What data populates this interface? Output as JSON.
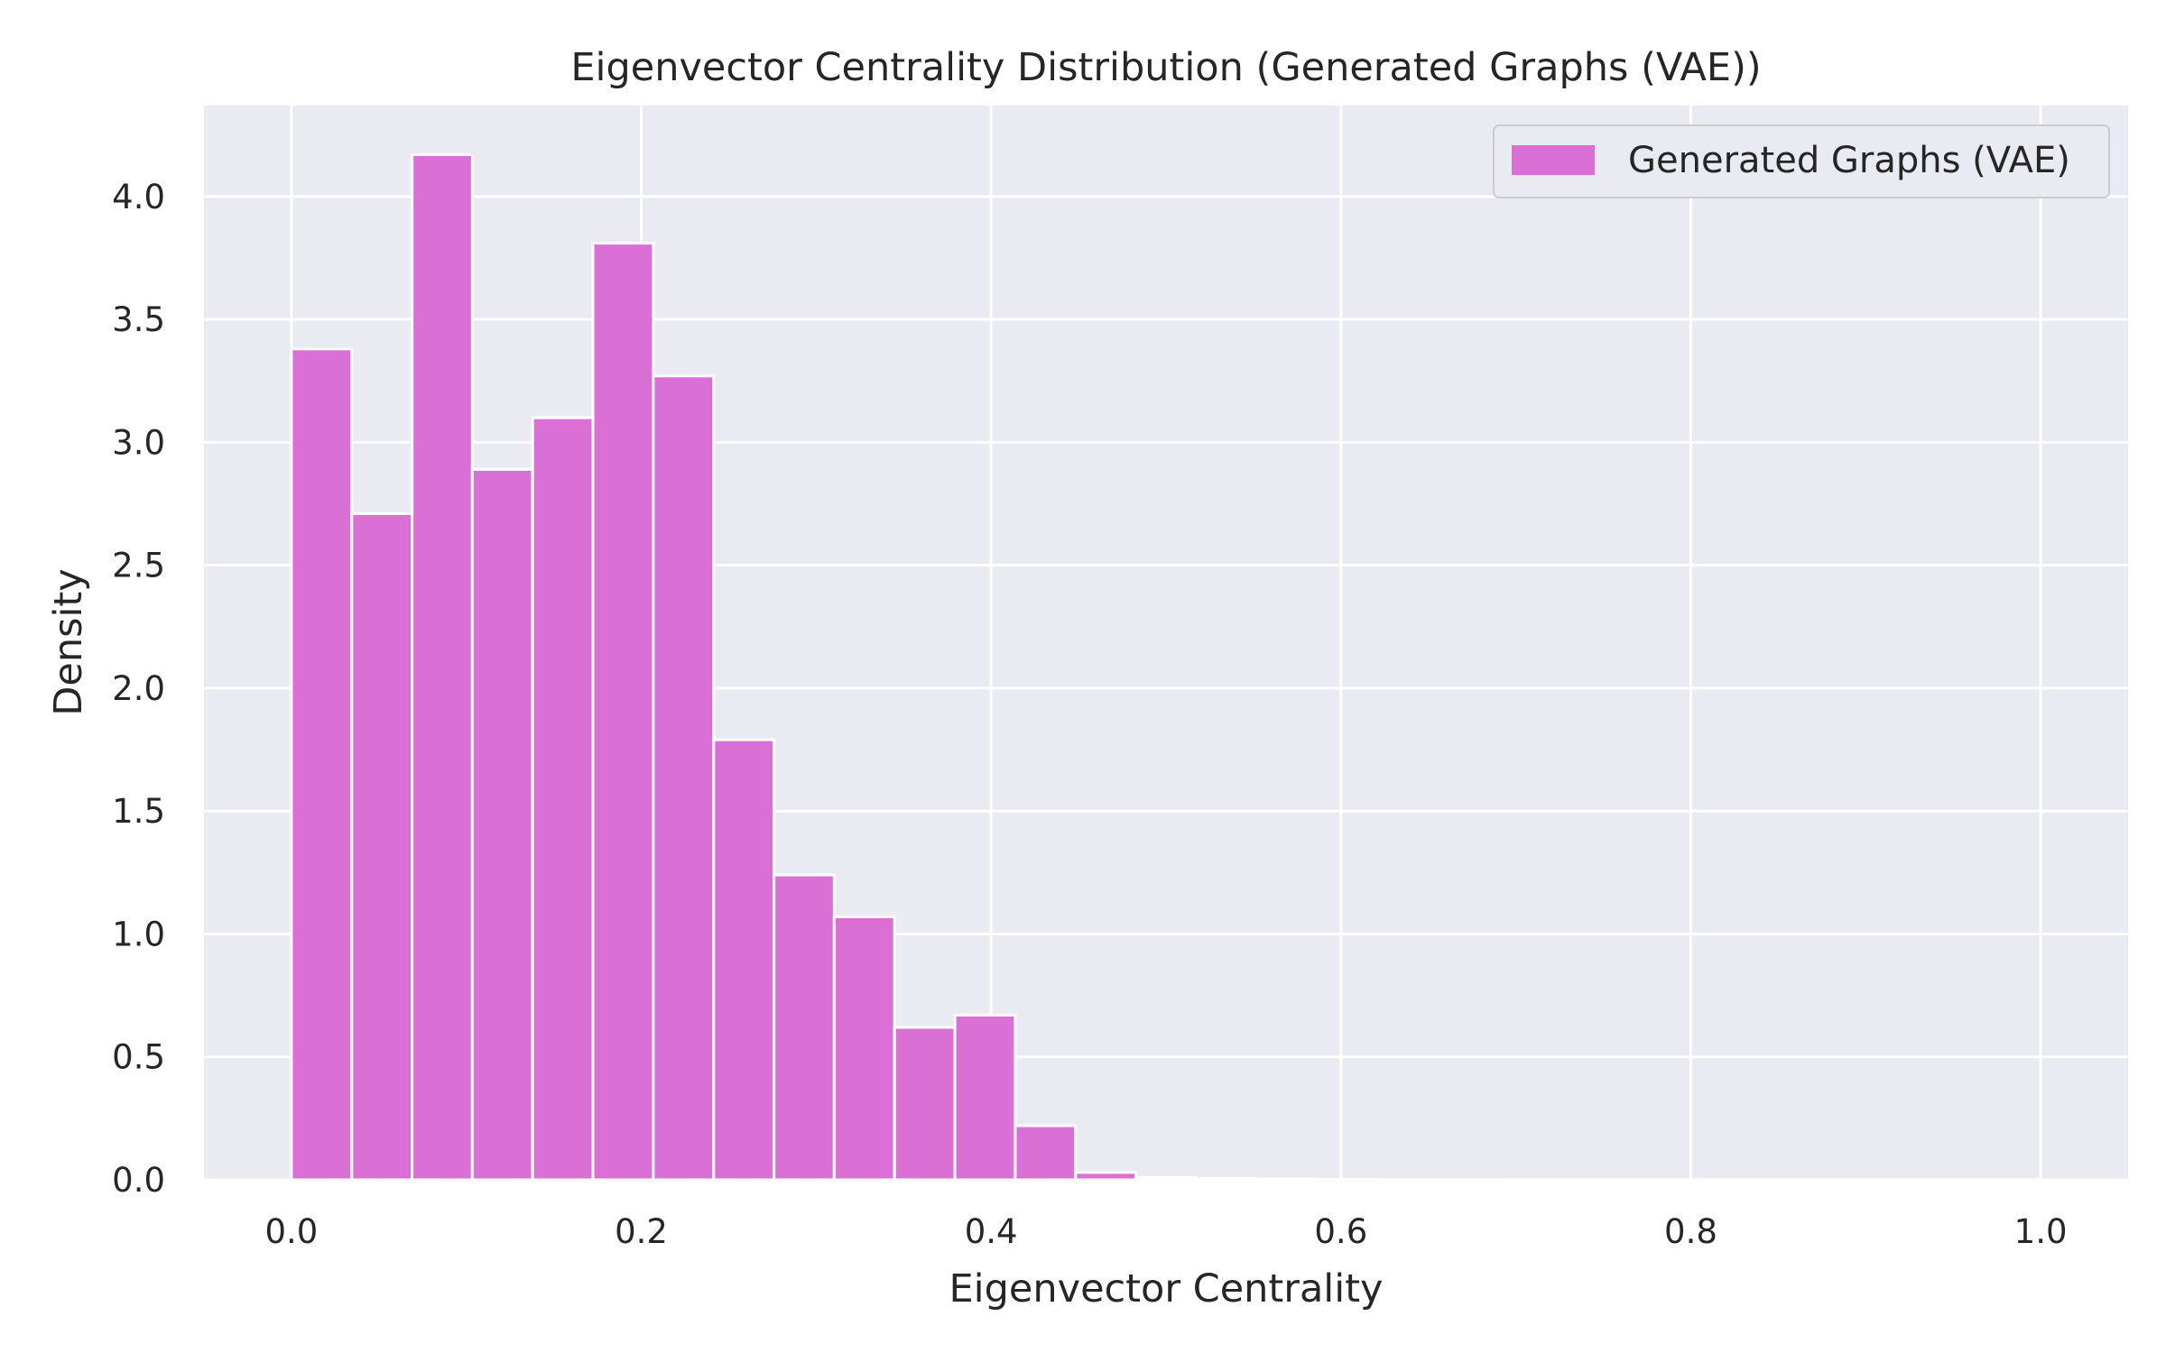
{
  "chart_data": {
    "type": "bar",
    "title": "Eigenvector Centrality Distribution (Generated Graphs (VAE))",
    "xlabel": "Eigenvector Centrality",
    "ylabel": "Density",
    "xlim": [
      -0.05,
      1.05
    ],
    "ylim": [
      0,
      4.37
    ],
    "xticks": [
      0.0,
      0.2,
      0.4,
      0.6,
      0.8,
      1.0
    ],
    "xtick_labels": [
      "0.0",
      "0.2",
      "0.4",
      "0.6",
      "0.8",
      "1.0"
    ],
    "yticks": [
      0.0,
      0.5,
      1.0,
      1.5,
      2.0,
      2.5,
      3.0,
      3.5,
      4.0
    ],
    "ytick_labels": [
      "0.0",
      "0.5",
      "1.0",
      "1.5",
      "2.0",
      "2.5",
      "3.0",
      "3.5",
      "4.0"
    ],
    "grid": true,
    "legend_position": "top-right",
    "bin_edges": [
      0.0,
      0.0345,
      0.069,
      0.1034,
      0.1379,
      0.1724,
      0.2069,
      0.2414,
      0.2759,
      0.3103,
      0.3448,
      0.3793,
      0.4138,
      0.4483,
      0.4828,
      0.5172,
      0.5517,
      0.5862,
      0.6207,
      0.6552,
      0.6897,
      0.7241,
      0.7586,
      0.7931,
      0.8276,
      0.8621,
      0.8966,
      0.931,
      0.9655,
      1.0
    ],
    "series": [
      {
        "name": "Generated Graphs (VAE)",
        "color": "#da70d6",
        "values": [
          3.38,
          2.71,
          4.17,
          2.89,
          3.1,
          3.81,
          3.27,
          1.79,
          1.24,
          1.07,
          0.62,
          0.67,
          0.22,
          0.03,
          0.01,
          0.005,
          0.003,
          0.002,
          0.001,
          0.001,
          0.0005,
          0.0005,
          0.0005,
          0.0005,
          0.0005,
          0.0005,
          0.0005,
          0.0005,
          0.0005
        ]
      }
    ]
  },
  "colors": {
    "plot_background": "#eaeaf2",
    "grid": "#ffffff",
    "bar_edge": "#ffffff",
    "text": "#262626"
  }
}
